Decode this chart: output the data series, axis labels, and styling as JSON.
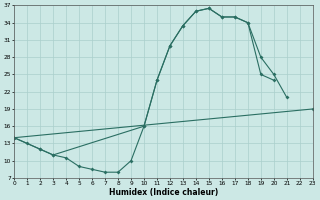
{
  "bg_color": "#cce8e5",
  "grid_color": "#aacfcc",
  "line_color": "#2a6e62",
  "xlabel": "Humidex (Indice chaleur)",
  "xlim": [
    0,
    23
  ],
  "ylim": [
    7,
    37
  ],
  "xticks": [
    0,
    1,
    2,
    3,
    4,
    5,
    6,
    7,
    8,
    9,
    10,
    11,
    12,
    13,
    14,
    15,
    16,
    17,
    18,
    19,
    20,
    21,
    22,
    23
  ],
  "yticks": [
    7,
    10,
    13,
    16,
    19,
    22,
    25,
    28,
    31,
    34,
    37
  ],
  "curve1_x": [
    0,
    1,
    2,
    3,
    10,
    11,
    12,
    13,
    14,
    15,
    16,
    17,
    18,
    19,
    20
  ],
  "curve1_y": [
    14,
    13,
    12,
    11,
    16,
    24,
    30,
    33.5,
    36,
    36.5,
    35,
    35,
    34,
    25,
    24
  ],
  "curve2_x": [
    0,
    2,
    3,
    4,
    5,
    6,
    7,
    8,
    9,
    10,
    11,
    12,
    13,
    14,
    15,
    16,
    17,
    18,
    19,
    20,
    21
  ],
  "curve2_y": [
    14,
    12,
    11,
    10.5,
    9,
    8.5,
    8,
    8,
    10,
    16,
    24,
    30,
    33.5,
    36,
    36.5,
    35,
    35,
    34,
    28,
    25,
    21
  ],
  "curve3_x": [
    0,
    23
  ],
  "curve3_y": [
    14,
    19
  ]
}
